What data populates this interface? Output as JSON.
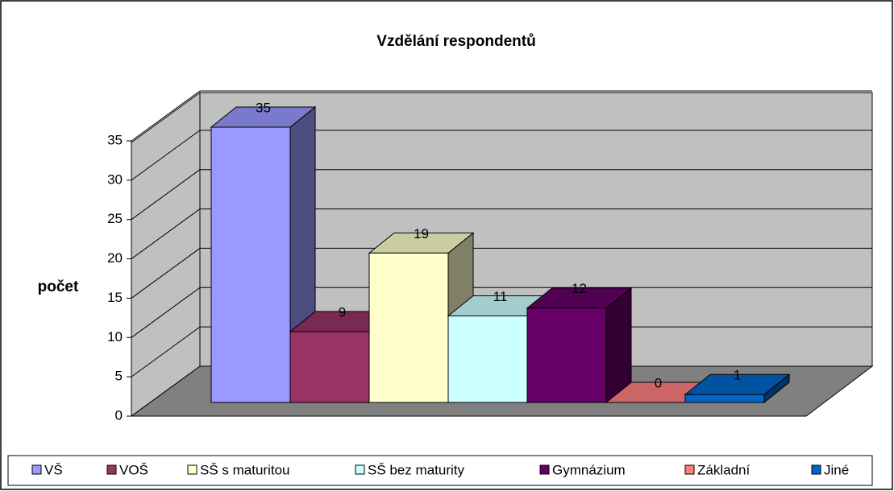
{
  "chart_data": {
    "type": "bar3d",
    "title": "Vzdělání respondentů",
    "y_label": "počet",
    "categories": [
      "VŠ",
      "VOŠ",
      "SŠ s maturitou",
      "SŠ bez maturity",
      "Gymnázium",
      "Základní",
      "Jiné"
    ],
    "values": [
      35,
      9,
      19,
      11,
      12,
      0,
      1
    ],
    "colors": [
      "#9999ff",
      "#993366",
      "#ffffcc",
      "#ccffff",
      "#660066",
      "#ff8080",
      "#0066cc"
    ],
    "ylim": [
      0,
      35
    ],
    "yticks": [
      0,
      5,
      10,
      15,
      20,
      25,
      30,
      35
    ],
    "grid": true,
    "legend": "bottom"
  }
}
